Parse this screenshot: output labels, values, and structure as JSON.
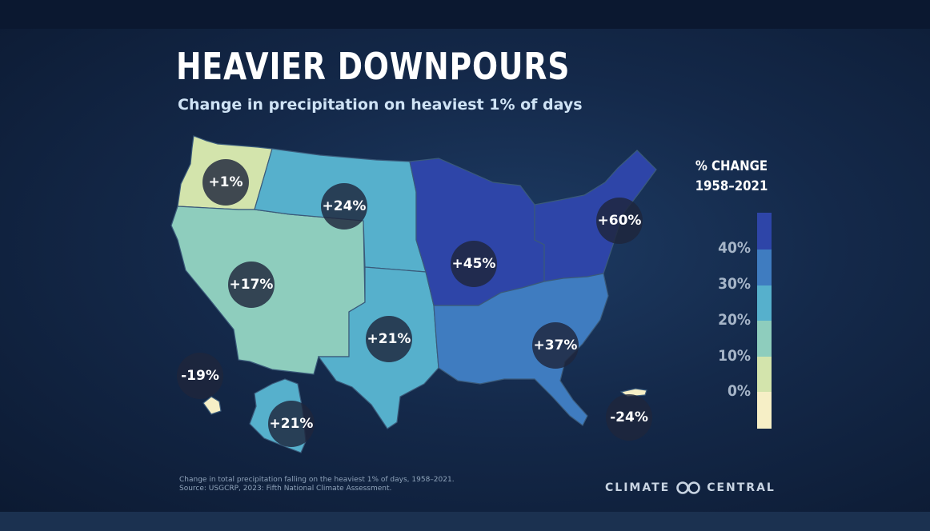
{
  "title": "HEAVIER DOWNPOURS",
  "subtitle": "Change in precipitation on heaviest 1% of days",
  "legend": {
    "title_line1": "% CHANGE",
    "title_line2": "1958–2021",
    "labels": [
      "40%",
      "30%",
      "20%",
      "10%",
      "0%"
    ],
    "colors": [
      "#2e45a8",
      "#3f7cc0",
      "#56b0cc",
      "#8ecdbd",
      "#d3e4ac",
      "#f6efc6"
    ]
  },
  "regions": [
    {
      "name": "Northwest",
      "change": "+1%",
      "color": "#d3e4ac"
    },
    {
      "name": "Northern Great Plains",
      "change": "+24%",
      "color": "#56b0cc"
    },
    {
      "name": "Southwest",
      "change": "+17%",
      "color": "#8ecdbd"
    },
    {
      "name": "Southern Great Plains",
      "change": "+21%",
      "color": "#56b0cc"
    },
    {
      "name": "Midwest",
      "change": "+45%",
      "color": "#2e45a8"
    },
    {
      "name": "Northeast",
      "change": "+60%",
      "color": "#2e45a8"
    },
    {
      "name": "Southeast",
      "change": "+37%",
      "color": "#3f7cc0"
    },
    {
      "name": "Hawaii",
      "change": "-19%",
      "color": "#f6efc6"
    },
    {
      "name": "Alaska",
      "change": "+21%",
      "color": "#56b0cc"
    },
    {
      "name": "Puerto Rico",
      "change": "-24%",
      "color": "#f6efc6"
    }
  ],
  "footnote_line1": "Change in total precipitation falling on the heaviest 1% of days, 1958–2021.",
  "footnote_line2": "Source: USGCRP, 2023: Fifth National Climate Assessment.",
  "brand": {
    "left": "CLIMATE",
    "right": "CENTRAL",
    "logo_icon": "infinity-icon"
  }
}
